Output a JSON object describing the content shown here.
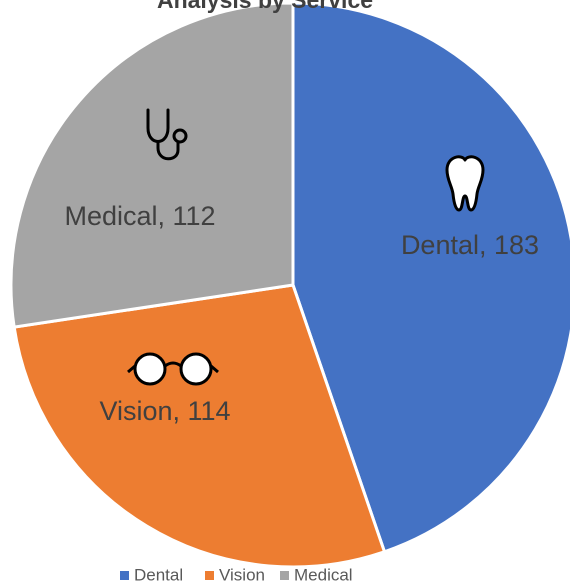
{
  "chart_data": {
    "type": "pie",
    "title": "Analysis by Service",
    "categories": [
      "Dental",
      "Vision",
      "Medical"
    ],
    "values": [
      183,
      114,
      112
    ],
    "value_labels": [
      "Dental, 183",
      "Vision, 114",
      "Medical, 112"
    ],
    "colors": [
      "#4472c4",
      "#ed7d31",
      "#a5a5a5"
    ],
    "legend": "bottom"
  }
}
